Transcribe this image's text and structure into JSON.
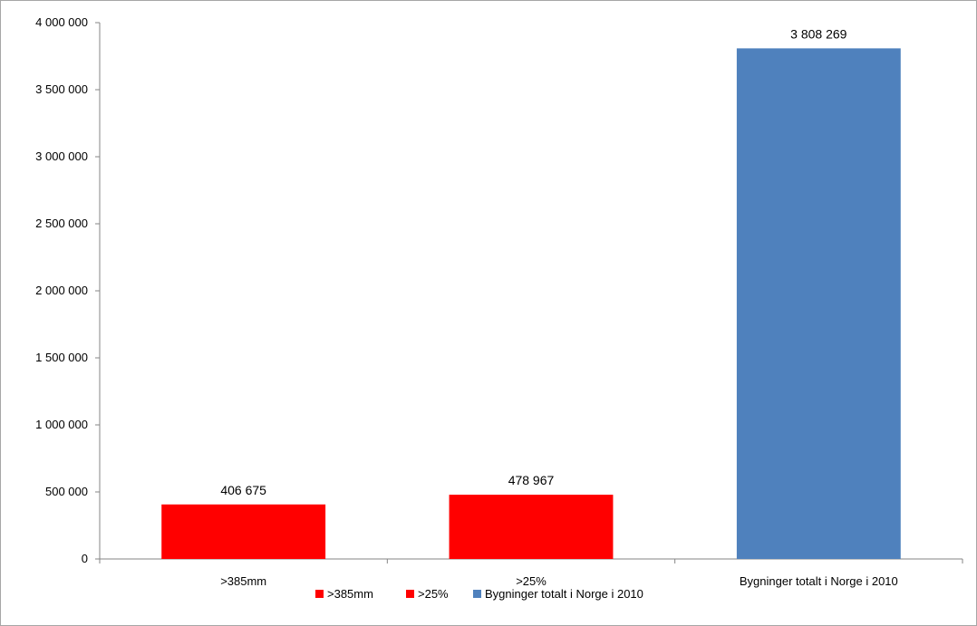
{
  "chart_data": {
    "type": "bar",
    "categories": [
      ">385mm",
      ">25%",
      "Bygninger totalt i Norge i 2010"
    ],
    "values": [
      406675,
      478967,
      3808269
    ],
    "data_labels": [
      "406 675",
      "478 967",
      "3 808 269"
    ],
    "colors": [
      "#ff0000",
      "#ff0000",
      "#4f81bd"
    ],
    "ylim": [
      0,
      4000000
    ],
    "y_ticks": [
      0,
      500000,
      1000000,
      1500000,
      2000000,
      2500000,
      3000000,
      3500000,
      4000000
    ],
    "y_tick_labels": [
      "0",
      "500 000",
      "1 000 000",
      "1 500 000",
      "2 000 000",
      "2 500 000",
      "3 000 000",
      "3 500 000",
      "4 000 000"
    ],
    "grid": false,
    "legend": {
      "placement": "bottom",
      "entries": [
        {
          "label": ">385mm",
          "color": "#ff0000"
        },
        {
          "label": ">25%",
          "color": "#ff0000"
        },
        {
          "label": "Bygninger totalt i Norge i 2010",
          "color": "#4f81bd"
        }
      ]
    },
    "title": "",
    "xlabel": "",
    "ylabel": ""
  }
}
